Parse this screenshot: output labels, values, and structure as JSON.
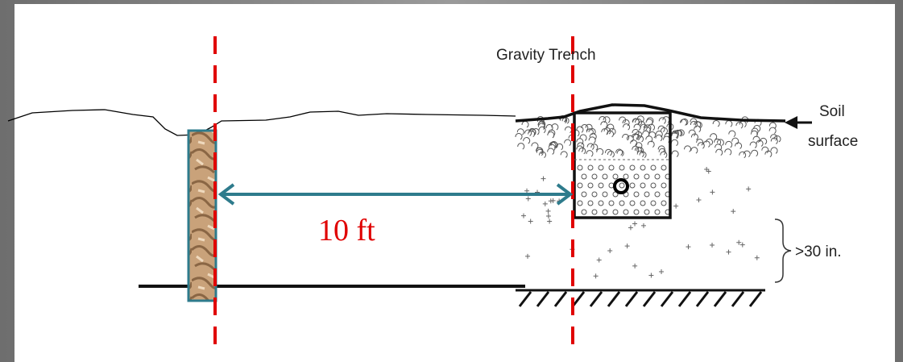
{
  "labels": {
    "trench": "Gravity Trench",
    "soil_surface": [
      "Soil",
      "surface"
    ],
    "distance": "10 ft",
    "depth": ">30 in."
  }
}
